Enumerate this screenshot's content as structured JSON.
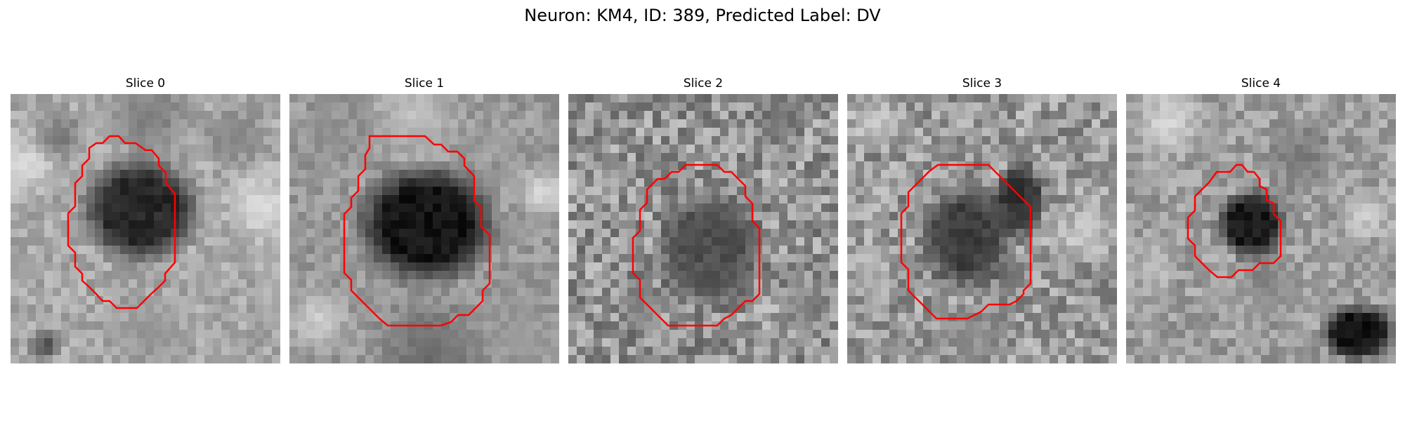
{
  "figure": {
    "suptitle": "Neuron: KM4, ID: 389, Predicted Label: DV",
    "contour_color": "#ff0000"
  },
  "panels": [
    {
      "title": "Slice 0"
    },
    {
      "title": "Slice 1"
    },
    {
      "title": "Slice 2"
    },
    {
      "title": "Slice 3"
    },
    {
      "title": "Slice 4"
    }
  ]
}
